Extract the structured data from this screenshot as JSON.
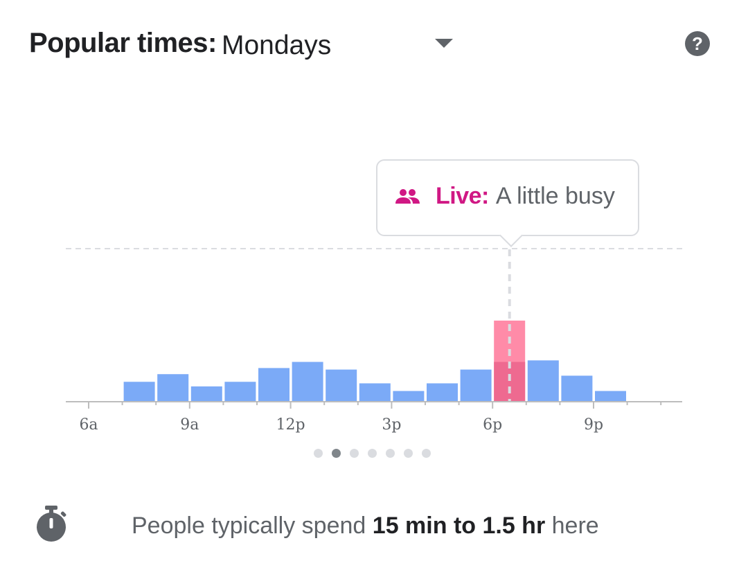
{
  "header": {
    "title": "Popular times:",
    "selected_day": "Mondays"
  },
  "icons": {
    "dropdown": "chevron-down-icon",
    "help": "help-icon",
    "people": "people-icon",
    "timer": "timer-icon"
  },
  "help_glyph": "?",
  "tooltip": {
    "live_label": "Live:",
    "status": "A little busy"
  },
  "chart_data": {
    "type": "bar",
    "x_tick_labels": [
      "6a",
      "9a",
      "12p",
      "3p",
      "6p",
      "9p"
    ],
    "hours": [
      "6a",
      "7a",
      "8a",
      "9a",
      "10a",
      "11a",
      "12p",
      "1p",
      "2p",
      "3p",
      "4p",
      "5p",
      "6p",
      "7p",
      "8p",
      "9p",
      "10p",
      "11p"
    ],
    "values": [
      0,
      13,
      18,
      10,
      13,
      22,
      26,
      21,
      12,
      7,
      12,
      21,
      53,
      27,
      17,
      7,
      0,
      0
    ],
    "live": {
      "hour": "6p",
      "value": 26
    },
    "ylim": [
      0,
      100
    ],
    "dashed_reference_value": 100,
    "colors": {
      "bar": "#7baaf7",
      "highlight": "#ff8ba8",
      "live": "#ee6a90",
      "axis": "#bdbdbd"
    }
  },
  "pager": {
    "count": 7,
    "active_index": 1
  },
  "footer": {
    "prefix": "People typically spend",
    "duration": "15 min to 1.5 hr",
    "suffix": "here"
  }
}
